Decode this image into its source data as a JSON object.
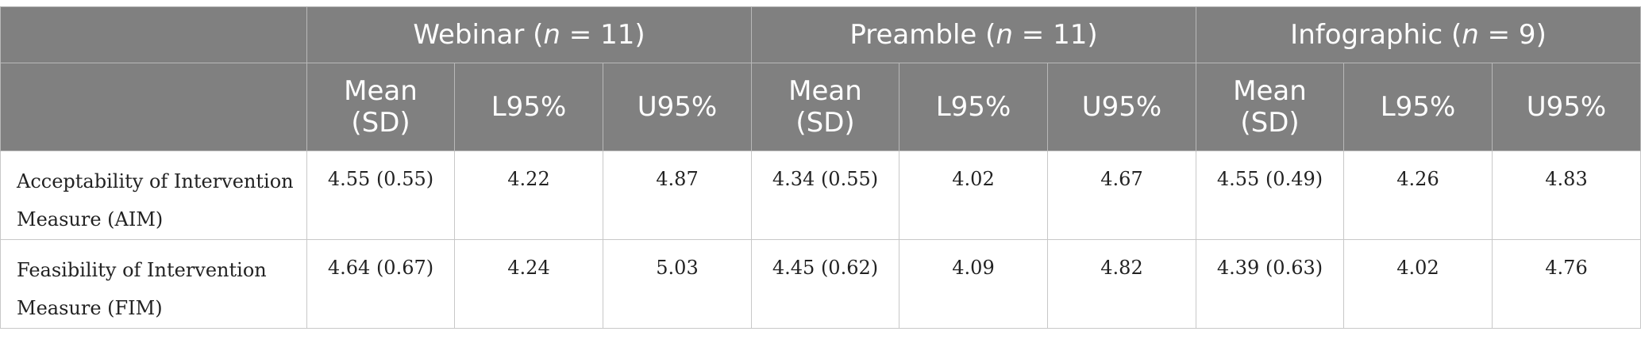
{
  "table": {
    "groups": [
      {
        "name": "Webinar (",
        "n_label": "n",
        "n_eq": " = 11)"
      },
      {
        "name": "Preamble (",
        "n_label": "n",
        "n_eq": " = 11)"
      },
      {
        "name": "Infographic (",
        "n_label": "n",
        "n_eq": " = 9)"
      }
    ],
    "subheaders": {
      "mean_line1": "Mean",
      "mean_line2": "(SD)",
      "lower": "L95%",
      "upper": "U95%"
    },
    "rows": [
      {
        "label_line1": "Acceptability of Intervention",
        "label_line2": "Measure (AIM)",
        "values": [
          "4.55 (0.55)",
          "4.22",
          "4.87",
          "4.34 (0.55)",
          "4.02",
          "4.67",
          "4.55 (0.49)",
          "4.26",
          "4.83"
        ]
      },
      {
        "label_line1": "Feasibility of Intervention",
        "label_line2": "Measure (FIM)",
        "values": [
          "4.64 (0.67)",
          "4.24",
          "5.03",
          "4.45 (0.62)",
          "4.09",
          "4.82",
          "4.39 (0.63)",
          "4.02",
          "4.76"
        ]
      }
    ]
  },
  "colors": {
    "header_bg": "#808080",
    "header_text": "#ffffff",
    "border": "#c8c8c8"
  }
}
